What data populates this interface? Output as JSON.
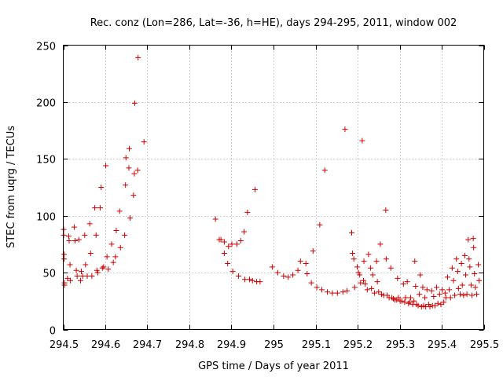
{
  "chart_data": {
    "type": "scatter",
    "title": "Rec. conz (Lon=286, Lat=-36, h=HE), days 294-295, 2011, window 002",
    "xlabel": "GPS time / Days of year 2011",
    "ylabel": "STEC from uqrg / TECUs",
    "xlim": [
      294.5,
      295.5
    ],
    "ylim": [
      0,
      250
    ],
    "x_ticks": [
      294.5,
      294.6,
      294.7,
      294.8,
      294.9,
      295.0,
      295.1,
      295.2,
      295.3,
      295.4,
      295.5
    ],
    "x_tick_labels": [
      "294.5",
      "294.6",
      "294.7",
      "294.8",
      "294.9",
      "295",
      "295.1",
      "295.2",
      "295.3",
      "295.4",
      "295.5"
    ],
    "y_ticks": [
      0,
      50,
      100,
      150,
      200,
      250
    ],
    "y_tick_labels": [
      "0",
      "50",
      "100",
      "150",
      "200",
      "250"
    ],
    "grid": true,
    "marker": "+",
    "color": "#cc0000",
    "series": [
      {
        "points": [
          [
            294.501,
            88
          ],
          [
            294.501,
            83
          ],
          [
            294.502,
            66
          ],
          [
            294.502,
            62
          ],
          [
            294.503,
            41
          ],
          [
            294.503,
            39
          ],
          [
            294.51,
            45
          ],
          [
            294.513,
            82
          ],
          [
            294.514,
            78
          ],
          [
            294.516,
            57
          ],
          [
            294.517,
            43
          ],
          [
            294.526,
            90
          ],
          [
            294.528,
            78
          ],
          [
            294.531,
            52
          ],
          [
            294.533,
            47
          ],
          [
            294.537,
            79
          ],
          [
            294.541,
            43
          ],
          [
            294.543,
            51
          ],
          [
            294.546,
            47
          ],
          [
            294.551,
            83
          ],
          [
            294.553,
            57
          ],
          [
            294.557,
            47
          ],
          [
            294.563,
            93
          ],
          [
            294.565,
            67
          ],
          [
            294.568,
            47
          ],
          [
            294.575,
            107
          ],
          [
            294.578,
            83
          ],
          [
            294.58,
            52
          ],
          [
            294.582,
            50
          ],
          [
            294.588,
            107
          ],
          [
            294.59,
            125
          ],
          [
            294.593,
            54
          ],
          [
            294.596,
            55
          ],
          [
            294.601,
            144
          ],
          [
            294.604,
            64
          ],
          [
            294.607,
            53
          ],
          [
            294.615,
            75
          ],
          [
            294.619,
            59
          ],
          [
            294.624,
            64
          ],
          [
            294.626,
            87
          ],
          [
            294.634,
            104
          ],
          [
            294.636,
            72
          ],
          [
            294.646,
            83
          ],
          [
            294.648,
            127
          ],
          [
            294.649,
            151
          ],
          [
            294.656,
            142
          ],
          [
            294.657,
            159
          ],
          [
            294.659,
            98
          ],
          [
            294.667,
            118
          ],
          [
            294.669,
            137
          ],
          [
            294.67,
            199
          ],
          [
            294.677,
            140
          ],
          [
            294.678,
            239
          ],
          [
            294.692,
            165
          ],
          [
            294.862,
            97
          ],
          [
            294.871,
            79
          ],
          [
            294.875,
            79
          ],
          [
            294.883,
            77
          ],
          [
            294.883,
            67
          ],
          [
            294.891,
            58
          ],
          [
            294.893,
            73
          ],
          [
            294.901,
            75
          ],
          [
            294.903,
            51
          ],
          [
            294.913,
            75
          ],
          [
            294.917,
            47
          ],
          [
            294.922,
            78
          ],
          [
            294.93,
            86
          ],
          [
            294.932,
            44
          ],
          [
            294.938,
            103
          ],
          [
            294.943,
            44
          ],
          [
            294.95,
            43
          ],
          [
            294.956,
            123
          ],
          [
            294.96,
            42
          ],
          [
            294.968,
            42
          ],
          [
            294.997,
            55
          ],
          [
            295.01,
            50
          ],
          [
            295.024,
            47
          ],
          [
            295.035,
            46
          ],
          [
            295.046,
            48
          ],
          [
            295.058,
            52
          ],
          [
            295.064,
            60
          ],
          [
            295.077,
            58
          ],
          [
            295.08,
            49
          ],
          [
            295.09,
            41
          ],
          [
            295.094,
            69
          ],
          [
            295.103,
            37
          ],
          [
            295.11,
            92
          ],
          [
            295.115,
            35
          ],
          [
            295.122,
            140
          ],
          [
            295.128,
            33
          ],
          [
            295.14,
            32
          ],
          [
            295.152,
            32
          ],
          [
            295.165,
            33
          ],
          [
            295.17,
            176
          ],
          [
            295.175,
            34
          ],
          [
            295.186,
            85
          ],
          [
            295.188,
            67
          ],
          [
            295.191,
            62
          ],
          [
            295.193,
            37
          ],
          [
            295.199,
            55
          ],
          [
            295.202,
            50
          ],
          [
            295.205,
            48
          ],
          [
            295.207,
            41
          ],
          [
            295.211,
            166
          ],
          [
            295.214,
            43
          ],
          [
            295.215,
            60
          ],
          [
            295.218,
            40
          ],
          [
            295.223,
            35
          ],
          [
            295.226,
            66
          ],
          [
            295.231,
            54
          ],
          [
            295.233,
            36
          ],
          [
            295.236,
            48
          ],
          [
            295.24,
            32
          ],
          [
            295.245,
            60
          ],
          [
            295.247,
            42
          ],
          [
            295.25,
            33
          ],
          [
            295.254,
            75
          ],
          [
            295.257,
            31
          ],
          [
            295.262,
            30
          ],
          [
            295.267,
            105
          ],
          [
            295.268,
            62
          ],
          [
            295.27,
            30
          ],
          [
            295.275,
            28
          ],
          [
            295.279,
            54
          ],
          [
            295.281,
            28
          ],
          [
            295.285,
            27
          ],
          [
            295.289,
            26
          ],
          [
            295.293,
            26
          ],
          [
            295.295,
            45
          ],
          [
            295.297,
            28
          ],
          [
            295.301,
            25
          ],
          [
            295.305,
            25
          ],
          [
            295.309,
            40
          ],
          [
            295.312,
            24
          ],
          [
            295.314,
            28
          ],
          [
            295.318,
            42
          ],
          [
            295.321,
            23
          ],
          [
            295.324,
            24
          ],
          [
            295.326,
            28
          ],
          [
            295.331,
            22
          ],
          [
            295.334,
            25
          ],
          [
            295.336,
            60
          ],
          [
            295.338,
            38
          ],
          [
            295.34,
            22
          ],
          [
            295.344,
            21
          ],
          [
            295.347,
            31
          ],
          [
            295.349,
            48
          ],
          [
            295.352,
            20
          ],
          [
            295.355,
            37
          ],
          [
            295.357,
            21
          ],
          [
            295.36,
            28
          ],
          [
            295.362,
            20
          ],
          [
            295.365,
            35
          ],
          [
            295.369,
            22
          ],
          [
            295.372,
            20
          ],
          [
            295.376,
            34
          ],
          [
            295.378,
            21
          ],
          [
            295.381,
            29
          ],
          [
            295.384,
            21
          ],
          [
            295.388,
            37
          ],
          [
            295.391,
            23
          ],
          [
            295.395,
            31
          ],
          [
            295.398,
            22
          ],
          [
            295.401,
            35
          ],
          [
            295.405,
            24
          ],
          [
            295.408,
            32
          ],
          [
            295.41,
            28
          ],
          [
            295.414,
            46
          ],
          [
            295.418,
            35
          ],
          [
            295.421,
            28
          ],
          [
            295.425,
            54
          ],
          [
            295.428,
            43
          ],
          [
            295.431,
            30
          ],
          [
            295.435,
            62
          ],
          [
            295.438,
            51
          ],
          [
            295.44,
            36
          ],
          [
            295.444,
            31
          ],
          [
            295.447,
            58
          ],
          [
            295.449,
            39
          ],
          [
            295.452,
            30
          ],
          [
            295.455,
            65
          ],
          [
            295.457,
            48
          ],
          [
            295.46,
            31
          ],
          [
            295.463,
            79
          ],
          [
            295.465,
            62
          ],
          [
            295.467,
            55
          ],
          [
            295.47,
            39
          ],
          [
            295.472,
            30
          ],
          [
            295.475,
            80
          ],
          [
            295.476,
            72
          ],
          [
            295.478,
            49
          ],
          [
            295.48,
            37
          ],
          [
            295.483,
            31
          ],
          [
            295.487,
            57
          ],
          [
            295.489,
            43
          ]
        ]
      }
    ]
  }
}
